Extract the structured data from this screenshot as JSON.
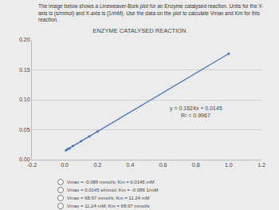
{
  "question": "The image below shows a Lineweaver-Burk plot for an Enzyme catalysed reaction. Units for the Y-axis is (s/mmol) and X-axis is (1/mM). Use the data on the plot to calculate Vmax and Km for this reaction.",
  "options": [
    "Vmax = -0.089 mmol/s; Km = 0.0145 mM",
    "Vmax = 0.0145 s/mmol; Km = -0.089 1/mM",
    "Vmax = 68.97 mmol/s; Km = 11.24 mM",
    "Vmax = 11.24 mM; Km = 68.97 mmol/s"
  ],
  "chart_data": {
    "type": "scatter",
    "title": "ENZYME CATALYSED REACTION",
    "series": [
      {
        "type": "scatter",
        "marker": "circle",
        "color": "#4472c4",
        "x": [
          0.01,
          0.02,
          0.03,
          0.05,
          0.1,
          0.15,
          0.2,
          1.0
        ],
        "values": [
          0.016,
          0.018,
          0.019,
          0.023,
          0.031,
          0.039,
          0.047,
          0.177
        ]
      },
      {
        "type": "line",
        "line_style": "solid",
        "color": "#4472c4",
        "x": [
          0.0,
          1.0
        ],
        "values": [
          0.0145,
          0.1769
        ]
      }
    ],
    "annotations": [
      {
        "text": "y = 0.1624x + 0.0145",
        "x": 0.8,
        "y": 0.085
      },
      {
        "text": "R² = 0.9967",
        "x": 0.8,
        "y": 0.074
      }
    ],
    "xlim": [
      -0.2,
      1.2
    ],
    "xticks": [
      -0.2,
      {
        "value": 0,
        "label": "0.0"
      },
      0.2,
      0.4,
      0.6,
      0.8,
      {
        "value": 1,
        "label": "1.0"
      },
      1.2
    ],
    "ylim": [
      0,
      0.2
    ],
    "yticks": [
      {
        "value": 0,
        "label": "0.00"
      },
      0.05,
      {
        "value": 0.1,
        "label": "0.10"
      },
      0.15,
      {
        "value": 0.2,
        "label": "0.20"
      }
    ],
    "grid": true
  }
}
